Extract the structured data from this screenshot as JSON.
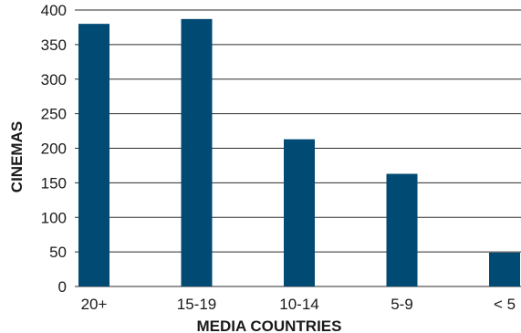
{
  "chart_data": {
    "type": "bar",
    "categories": [
      "20+",
      "15-19",
      "10-14",
      "5-9",
      "< 5"
    ],
    "values": [
      380,
      387,
      213,
      163,
      49
    ],
    "title": "",
    "xlabel": "MEDIA COUNTRIES",
    "ylabel": "CINEMAS",
    "ylim": [
      0,
      400
    ],
    "yticks": [
      0,
      50,
      100,
      150,
      200,
      250,
      300,
      350,
      400
    ],
    "grid": true,
    "bar_color": "#004a73"
  }
}
